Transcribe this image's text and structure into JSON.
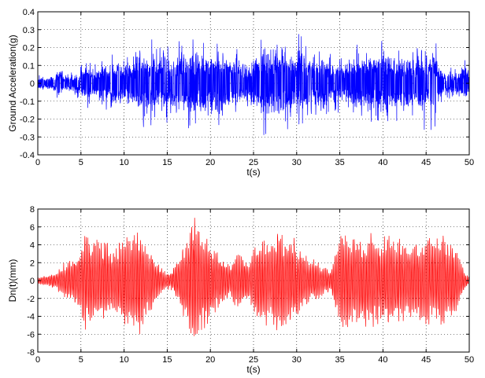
{
  "chart_data": [
    {
      "type": "line",
      "title": "",
      "xlabel": "t(s)",
      "ylabel": "Ground Acceleration(g)",
      "xlim": [
        0,
        50
      ],
      "ylim": [
        -0.4,
        0.4
      ],
      "xticks": [
        0,
        5,
        10,
        15,
        20,
        25,
        30,
        35,
        40,
        45,
        50
      ],
      "yticks": [
        -0.4,
        -0.3,
        -0.2,
        -0.1,
        0,
        0.1,
        0.2,
        0.3,
        0.4
      ],
      "xtick_labels": [
        "0",
        "5",
        "10",
        "15",
        "20",
        "25",
        "30",
        "35",
        "40",
        "45",
        "50"
      ],
      "ytick_labels": [
        "-0.4",
        "-0.3",
        "-0.2",
        "-0.1",
        "0",
        "0.1",
        "0.2",
        "0.3",
        "0.4"
      ],
      "grid": true,
      "color": "#0000ff",
      "series": [
        {
          "x": [
            0,
            1,
            2,
            2.6,
            3,
            4,
            4.8,
            5.3,
            6,
            6.8,
            7.5,
            8.3,
            9,
            9.8,
            10.5,
            11.2,
            12,
            12.5,
            13.3,
            14,
            14.8,
            15.5,
            16.3,
            17,
            17.8,
            18.5,
            19.3,
            20,
            20.8,
            21.5,
            22.3,
            23,
            23.7,
            24.5,
            25,
            25.6,
            26.3,
            27,
            27.7,
            28.4,
            29.1,
            29.8,
            30.5,
            31.2,
            31.9,
            32.6,
            33.3,
            34,
            34.7,
            35.4,
            36.1,
            36.8,
            37.5,
            38.2,
            38.9,
            39.6,
            40.3,
            41,
            41.7,
            42.4,
            43.1,
            43.8,
            44.5,
            45.2,
            45.9,
            46.6,
            47.3,
            48,
            48.7,
            49.4,
            50
          ],
          "y": [
            0.05,
            -0.05,
            0.08,
            -0.12,
            0.06,
            -0.07,
            0.1,
            -0.15,
            0.14,
            -0.12,
            0.16,
            -0.14,
            0.2,
            -0.16,
            0.18,
            -0.18,
            0.3,
            -0.22,
            0.26,
            -0.2,
            0.24,
            -0.18,
            0.27,
            -0.22,
            0.28,
            -0.26,
            0.25,
            -0.2,
            0.31,
            -0.24,
            0.22,
            -0.2,
            0.18,
            -0.12,
            0.27,
            -0.24,
            0.3,
            -0.26,
            0.28,
            -0.3,
            0.26,
            -0.24,
            0.3,
            -0.22,
            0.22,
            -0.2,
            0.24,
            -0.16,
            0.2,
            -0.14,
            0.22,
            -0.2,
            0.29,
            -0.22,
            0.26,
            -0.24,
            0.29,
            -0.22,
            0.25,
            -0.2,
            0.24,
            -0.18,
            0.28,
            -0.24,
            0.3,
            -0.12,
            0.08,
            -0.09,
            0.1,
            -0.16,
            0.08
          ]
        }
      ]
    },
    {
      "type": "line",
      "title": "",
      "xlabel": "t(s)",
      "ylabel": "Dn(t)(mm)",
      "xlim": [
        0,
        50
      ],
      "ylim": [
        -8,
        8
      ],
      "xticks": [
        0,
        5,
        10,
        15,
        20,
        25,
        30,
        35,
        40,
        45,
        50
      ],
      "yticks": [
        -8,
        -6,
        -4,
        -2,
        0,
        2,
        4,
        6,
        8
      ],
      "xtick_labels": [
        "0",
        "5",
        "10",
        "15",
        "20",
        "25",
        "30",
        "35",
        "40",
        "45",
        "50"
      ],
      "ytick_labels": [
        "-8",
        "-6",
        "-4",
        "-2",
        "0",
        "2",
        "4",
        "6",
        "8"
      ],
      "grid": true,
      "color": "#ff0000",
      "series": [
        {
          "x": [
            0,
            1,
            2,
            2.6,
            3,
            4,
            4.8,
            5.3,
            6,
            6.8,
            7.5,
            8.3,
            9,
            9.8,
            10.5,
            11.2,
            12,
            12.5,
            13.3,
            14,
            14.8,
            15.5,
            16.3,
            17,
            17.5,
            17.9,
            18.5,
            19.3,
            20,
            20.8,
            21.5,
            22.3,
            23,
            23.7,
            24.5,
            25,
            25.6,
            26.3,
            27,
            27.7,
            28.4,
            29.1,
            29.8,
            30.5,
            31.2,
            31.9,
            32.6,
            33.3,
            34,
            34.7,
            35.4,
            36.1,
            36.8,
            37.5,
            38.2,
            38.9,
            39.6,
            40.3,
            41,
            41.7,
            42.4,
            43.1,
            43.8,
            44.5,
            45.2,
            45.9,
            46.6,
            47.3,
            48,
            48.7,
            49.4,
            50
          ],
          "y": [
            0.4,
            -0.6,
            1.0,
            -1.5,
            2.0,
            -2.5,
            3.0,
            -5.8,
            5.0,
            -4.8,
            4.5,
            -4.2,
            3.8,
            -5.0,
            5.2,
            -6.2,
            6.4,
            -4.5,
            3.5,
            -2.0,
            1.0,
            -1.2,
            2.5,
            -4.5,
            5.8,
            -7.6,
            6.5,
            -5.5,
            4.5,
            -3.5,
            2.5,
            -2.0,
            3.5,
            -3.0,
            2.5,
            -4.0,
            4.5,
            -5.0,
            5.2,
            -5.8,
            5.5,
            -5.0,
            4.8,
            -4.0,
            3.0,
            -2.5,
            2.0,
            -1.5,
            1.2,
            -4.5,
            5.5,
            -5.5,
            5.0,
            -5.2,
            5.3,
            -5.8,
            5.0,
            -5.2,
            5.3,
            -5.0,
            4.5,
            -4.0,
            4.8,
            -4.5,
            5.3,
            -5.0,
            5.2,
            -5.5,
            4.5,
            -3.5,
            1.0,
            -0.5
          ]
        }
      ]
    }
  ]
}
